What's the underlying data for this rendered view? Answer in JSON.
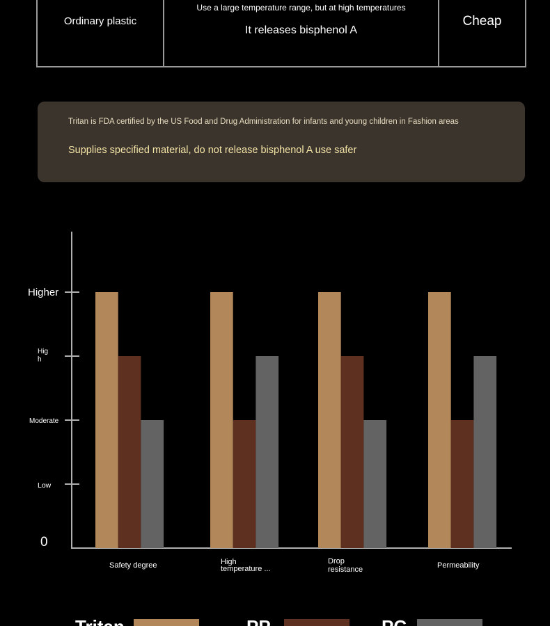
{
  "table_row": {
    "material": "Ordinary plastic",
    "description_line1": "Use a large temperature range, but at high temperatures",
    "description_line2": "It releases bisphenol A",
    "price": "Cheap"
  },
  "note": {
    "line1": "Tritan is FDA certified by the US Food and Drug Administration for infants and young children in Fashion areas",
    "line2": "Supplies specified material, do not release bisphenol A use safer"
  },
  "colors": {
    "background": "#000000",
    "note_background": "#3b342c",
    "note_text": "#f3e3a6",
    "axis": "#b0b0b0"
  },
  "chart_data": {
    "type": "bar",
    "categories": [
      "Safety degree",
      "High temperature ...",
      "Drop resistance",
      "Permeability"
    ],
    "category_label_lines": [
      [
        "Safety degree"
      ],
      [
        "High",
        "temperature ..."
      ],
      [
        "Drop",
        "resistance"
      ],
      [
        "Permeability"
      ]
    ],
    "series": [
      {
        "name": "Tritan",
        "values": [
          4,
          4,
          4,
          4
        ],
        "color": "#b2885a"
      },
      {
        "name": "PP",
        "values": [
          3,
          2,
          3,
          2
        ],
        "color": "#5e3020"
      },
      {
        "name": "PC",
        "values": [
          2,
          3,
          2,
          3
        ],
        "color": "#636363"
      }
    ],
    "y_levels": [
      {
        "value": 0,
        "label_lines": [
          "0"
        ]
      },
      {
        "value": 1,
        "label_lines": [
          "Low"
        ]
      },
      {
        "value": 2,
        "label_lines": [
          "Moderate"
        ]
      },
      {
        "value": 3,
        "label_lines": [
          "Hig",
          "h"
        ]
      },
      {
        "value": 4,
        "label_lines": [
          "Higher"
        ]
      }
    ],
    "ylim": [
      0,
      4
    ],
    "xlabel": "",
    "ylabel": "",
    "grid": false,
    "legend_position": "bottom"
  }
}
